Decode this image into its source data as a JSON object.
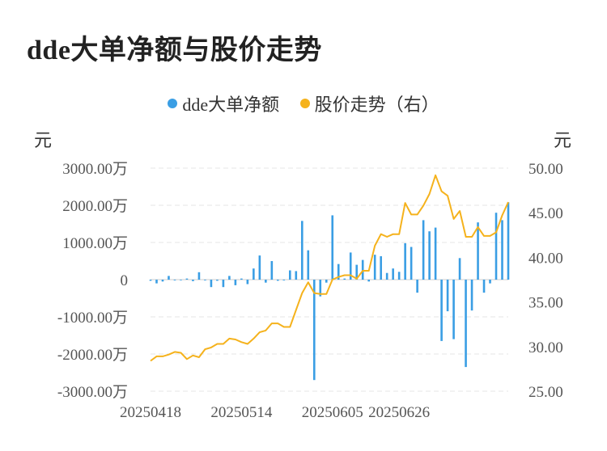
{
  "title": "dde大单净额与股价走势",
  "legend": {
    "series1": "dde大单净额",
    "series2": "股价走势（右）"
  },
  "colors": {
    "bar": "#3a9ee4",
    "line": "#f5b21c"
  },
  "chart_data": {
    "type": "bar+line",
    "title": "dde大单净额与股价走势",
    "left_axis": {
      "unit": "元",
      "range": [
        -3000,
        3000
      ],
      "ticks": [
        "3000.00万",
        "2000.00万",
        "1000.00万",
        "0",
        "-1000.00万",
        "-2000.00万",
        "-3000.00万"
      ]
    },
    "right_axis": {
      "unit": "元",
      "range": [
        25,
        50
      ],
      "ticks": [
        "50.00",
        "45.00",
        "40.00",
        "35.00",
        "30.00",
        "25.00"
      ]
    },
    "x_tick_labels": [
      "20250418",
      "20250514",
      "20250605",
      "20250626"
    ],
    "x_tick_indices": [
      0,
      15,
      30,
      41
    ],
    "series": [
      {
        "name": "dde大单净额",
        "type": "bar",
        "unit": "万元",
        "values": [
          -30,
          -100,
          -50,
          100,
          -20,
          -10,
          30,
          -40,
          200,
          -20,
          -200,
          -30,
          -200,
          100,
          -150,
          30,
          -120,
          300,
          650,
          -80,
          500,
          -30,
          -20,
          250,
          230,
          1580,
          790,
          -2700,
          -450,
          -80,
          1730,
          420,
          30,
          730,
          400,
          530,
          -50,
          670,
          630,
          180,
          300,
          210,
          980,
          880,
          -350,
          1600,
          1300,
          1400,
          -1650,
          -850,
          -1600,
          580,
          -2350,
          -830,
          1540,
          -350,
          -100,
          1800,
          1600,
          2080
        ]
      },
      {
        "name": "股价走势（右）",
        "type": "line",
        "unit": "元",
        "values": [
          28.4,
          28.9,
          28.9,
          29.1,
          29.4,
          29.3,
          28.6,
          29.0,
          28.8,
          29.7,
          29.9,
          30.3,
          30.3,
          30.9,
          30.8,
          30.5,
          30.3,
          30.9,
          31.6,
          31.8,
          32.6,
          32.6,
          32.2,
          32.2,
          34.1,
          36.0,
          37.2,
          36.0,
          35.9,
          35.9,
          37.5,
          37.8,
          38.0,
          38.0,
          37.6,
          38.5,
          38.5,
          41.3,
          42.6,
          42.3,
          42.6,
          42.6,
          46.1,
          44.8,
          44.8,
          45.8,
          47.1,
          49.2,
          47.4,
          46.9,
          44.3,
          45.2,
          42.3,
          42.3,
          43.4,
          42.4,
          42.4,
          42.8,
          44.7,
          46.2
        ]
      }
    ]
  }
}
